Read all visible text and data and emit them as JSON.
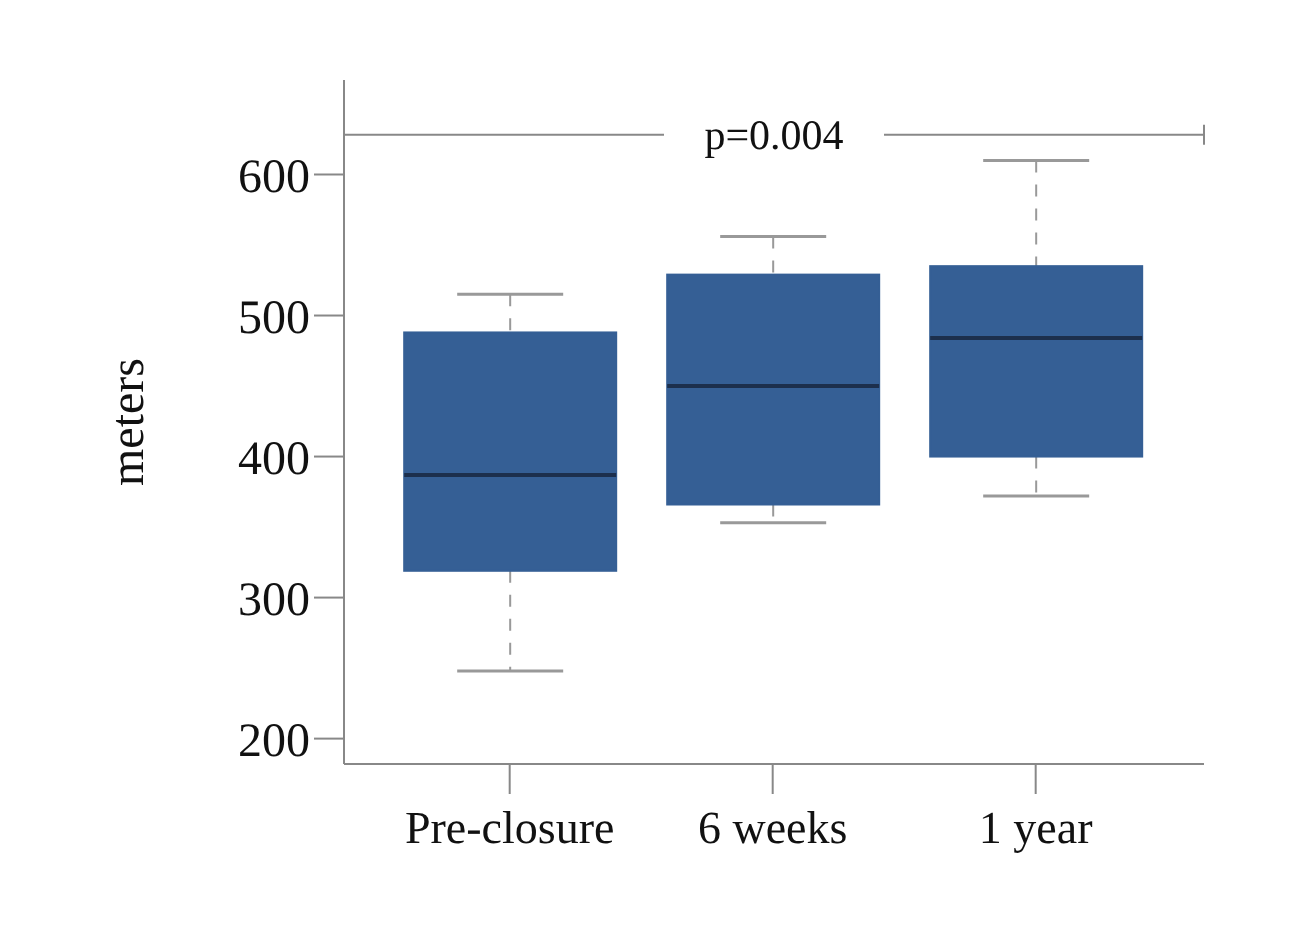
{
  "chart_data": {
    "type": "box",
    "ylabel": "meters",
    "categories": [
      "Pre-closure",
      "6 weeks",
      "1 year"
    ],
    "color": "#355f95",
    "boxes": [
      {
        "low": 248,
        "q1": 319,
        "median": 387,
        "q3": 488,
        "high": 515
      },
      {
        "low": 353,
        "q1": 366,
        "median": 450,
        "q3": 529,
        "high": 556
      },
      {
        "low": 372,
        "q1": 400,
        "median": 484,
        "q3": 535,
        "high": 610
      }
    ],
    "ylim": [
      182,
      667
    ],
    "yticks": [
      200,
      300,
      400,
      500,
      600
    ],
    "annotations": [
      "p=0.004"
    ]
  }
}
